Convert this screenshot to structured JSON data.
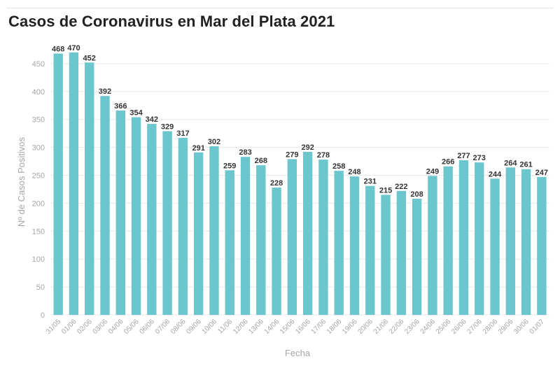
{
  "colors": {
    "bar": "#6cc6cd",
    "grid": "#e8e8e8",
    "tick": "#a6a6a6",
    "label": "#333333"
  },
  "chart_data": {
    "type": "bar",
    "title": "Casos de Coronavirus en Mar del Plata 2021",
    "xlabel": "Fecha",
    "ylabel": "Nº de Casos Positivos",
    "ylim": [
      0,
      480
    ],
    "yticks": [
      0,
      50,
      100,
      150,
      200,
      250,
      300,
      350,
      400,
      450
    ],
    "grid": true,
    "categories": [
      "31/05",
      "01/06",
      "02/06",
      "03/06",
      "04/06",
      "05/06",
      "06/06",
      "07/06",
      "08/06",
      "09/06",
      "10/06",
      "11/06",
      "12/06",
      "13/06",
      "14/06",
      "15/06",
      "16/06",
      "17/06",
      "18/06",
      "19/06",
      "20/06",
      "21/06",
      "22/06",
      "23/06",
      "24/06",
      "25/06",
      "26/06",
      "27/06",
      "28/06",
      "29/06",
      "30/06",
      "01/07"
    ],
    "values": [
      468,
      470,
      452,
      392,
      366,
      354,
      342,
      329,
      317,
      291,
      302,
      259,
      283,
      268,
      228,
      279,
      292,
      278,
      258,
      248,
      231,
      215,
      222,
      208,
      249,
      266,
      277,
      273,
      244,
      264,
      261,
      247
    ]
  }
}
